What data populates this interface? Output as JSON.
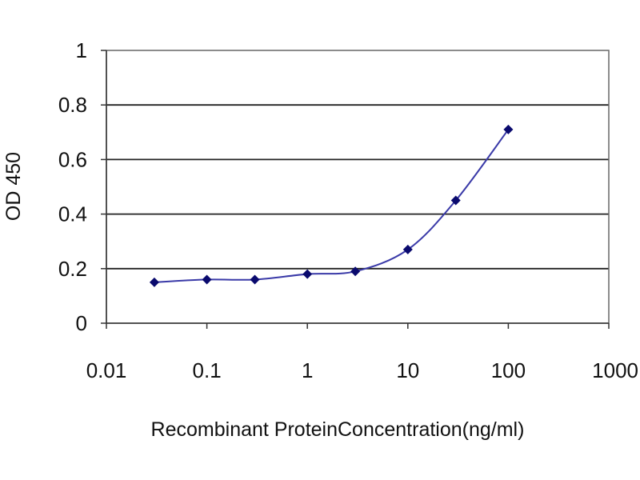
{
  "chart_data": {
    "type": "line",
    "x_scale": "log",
    "x_ticks": [
      0.01,
      0.1,
      1,
      10,
      100,
      1000
    ],
    "x_tick_labels": [
      "0.01",
      "0.1",
      "1",
      "10",
      "100",
      "1000"
    ],
    "y_ticks": [
      0,
      0.2,
      0.4,
      0.6,
      0.8,
      1
    ],
    "y_tick_labels": [
      "0",
      "0.2",
      "0.4",
      "0.6",
      "0.8",
      "1"
    ],
    "xlim": [
      0.01,
      1000
    ],
    "ylim": [
      0,
      1
    ],
    "xlabel": "Recombinant ProteinConcentration(ng/ml)",
    "ylabel": "OD 450",
    "grid": "horizontal",
    "series": [
      {
        "x": [
          0.03,
          0.1,
          0.3,
          1,
          3,
          10,
          30,
          100
        ],
        "y": [
          0.15,
          0.16,
          0.16,
          0.18,
          0.19,
          0.27,
          0.45,
          0.71
        ]
      }
    ],
    "colors": {
      "line": "#3a3aa8",
      "marker": "#0a0a6e",
      "grid": "#222222",
      "frame": "#666666"
    }
  }
}
